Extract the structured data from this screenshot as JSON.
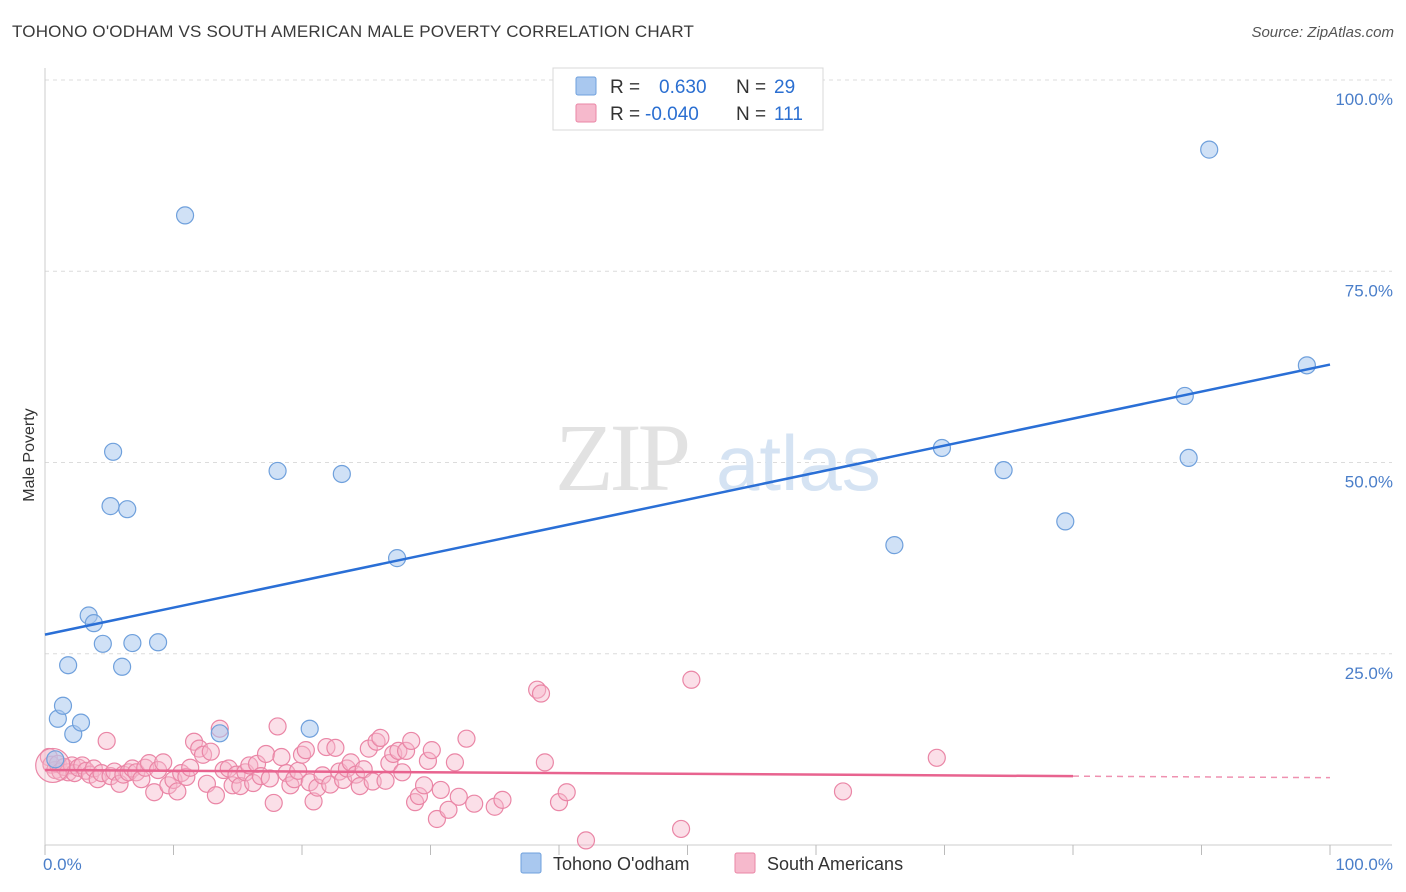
{
  "title": "TOHONO O'ODHAM VS SOUTH AMERICAN MALE POVERTY CORRELATION CHART",
  "source": "Source: ZipAtlas.com",
  "watermark": {
    "zip": "ZIP",
    "atlas": "atlas"
  },
  "colors": {
    "blue_fill": "#a9c8ef",
    "blue_stroke": "#6fa0dc",
    "blue_line": "#2a6fd6",
    "pink_fill": "#f6b9cc",
    "pink_stroke": "#ea86a6",
    "pink_line": "#e8638f",
    "tick_text": "#4a7ec9",
    "grid": "#dcdcdc"
  },
  "legend": {
    "rows": [
      {
        "r_label": "R =",
        "r_value": "0.630",
        "n_label": "N =",
        "n_value": "29"
      },
      {
        "r_label": "R =",
        "r_value": "-0.040",
        "n_label": "N =",
        "n_value": "111"
      }
    ]
  },
  "bottom_legend": [
    "Tohono O'odham",
    "South Americans"
  ],
  "chart_data": {
    "type": "scatter",
    "ylabel": "Male Poverty",
    "xlim": [
      0,
      100
    ],
    "ylim": [
      0,
      100
    ],
    "x_tick_labels": [
      "0.0%",
      "100.0%"
    ],
    "y_tick_labels": [
      "100.0%",
      "75.0%",
      "50.0%",
      "25.0%"
    ],
    "y_ticks": [
      100,
      75,
      50,
      25
    ],
    "grid": "horizontal dashed",
    "legend_placement": "top-center",
    "series": [
      {
        "name": "Tohono O'odham",
        "trend": {
          "x": [
            0,
            100
          ],
          "y": [
            27.5,
            62.8
          ]
        },
        "points": [
          [
            0.8,
            11.2
          ],
          [
            1.0,
            16.5
          ],
          [
            1.4,
            18.2
          ],
          [
            1.8,
            23.5
          ],
          [
            2.2,
            14.5
          ],
          [
            2.8,
            16.0
          ],
          [
            3.4,
            30.0
          ],
          [
            3.8,
            29.0
          ],
          [
            4.5,
            26.3
          ],
          [
            5.1,
            44.3
          ],
          [
            5.3,
            51.4
          ],
          [
            6.0,
            23.3
          ],
          [
            6.4,
            43.9
          ],
          [
            6.8,
            26.4
          ],
          [
            8.8,
            26.5
          ],
          [
            10.9,
            82.3
          ],
          [
            13.6,
            14.6
          ],
          [
            18.1,
            48.9
          ],
          [
            20.6,
            15.2
          ],
          [
            23.1,
            48.5
          ],
          [
            27.4,
            37.5
          ],
          [
            66.1,
            39.2
          ],
          [
            69.8,
            51.9
          ],
          [
            74.6,
            49.0
          ],
          [
            79.4,
            42.3
          ],
          [
            88.7,
            58.7
          ],
          [
            89.0,
            50.6
          ],
          [
            90.6,
            90.9
          ],
          [
            98.2,
            62.7
          ]
        ]
      },
      {
        "name": "South Americans",
        "trend": {
          "x": [
            0,
            80,
            100
          ],
          "y": [
            9.8,
            9.0,
            8.8
          ]
        },
        "points": [
          [
            0.3,
            11.5
          ],
          [
            0.5,
            10.5
          ],
          [
            0.8,
            9.8
          ],
          [
            1.0,
            10.6
          ],
          [
            1.2,
            9.6
          ],
          [
            1.5,
            10.2
          ],
          [
            1.8,
            9.5
          ],
          [
            2.1,
            10.4
          ],
          [
            2.3,
            9.4
          ],
          [
            2.6,
            10.1
          ],
          [
            2.9,
            10.4
          ],
          [
            3.2,
            9.7
          ],
          [
            3.5,
            9.2
          ],
          [
            3.8,
            10.0
          ],
          [
            4.1,
            8.6
          ],
          [
            4.4,
            9.4
          ],
          [
            4.8,
            13.6
          ],
          [
            5.1,
            9.0
          ],
          [
            5.4,
            9.6
          ],
          [
            5.8,
            8.0
          ],
          [
            6.1,
            9.2
          ],
          [
            6.5,
            9.5
          ],
          [
            6.8,
            10.0
          ],
          [
            7.1,
            9.5
          ],
          [
            7.5,
            8.6
          ],
          [
            7.8,
            10.1
          ],
          [
            8.1,
            10.7
          ],
          [
            8.5,
            6.9
          ],
          [
            8.8,
            9.8
          ],
          [
            9.2,
            10.8
          ],
          [
            9.6,
            7.8
          ],
          [
            10.0,
            8.5
          ],
          [
            10.3,
            7.0
          ],
          [
            10.6,
            9.4
          ],
          [
            11.0,
            8.9
          ],
          [
            11.3,
            10.1
          ],
          [
            11.6,
            13.5
          ],
          [
            12.0,
            12.6
          ],
          [
            12.3,
            11.8
          ],
          [
            12.6,
            8.0
          ],
          [
            12.9,
            12.2
          ],
          [
            13.3,
            6.5
          ],
          [
            13.6,
            15.2
          ],
          [
            13.9,
            9.8
          ],
          [
            14.3,
            10.0
          ],
          [
            14.6,
            7.8
          ],
          [
            14.9,
            9.2
          ],
          [
            15.2,
            7.7
          ],
          [
            15.6,
            9.5
          ],
          [
            15.9,
            10.4
          ],
          [
            16.2,
            8.1
          ],
          [
            16.5,
            10.6
          ],
          [
            16.8,
            9.0
          ],
          [
            17.2,
            11.9
          ],
          [
            17.5,
            8.7
          ],
          [
            17.8,
            5.5
          ],
          [
            18.1,
            15.5
          ],
          [
            18.4,
            11.5
          ],
          [
            18.8,
            9.4
          ],
          [
            19.1,
            7.8
          ],
          [
            19.4,
            8.6
          ],
          [
            19.7,
            9.7
          ],
          [
            20.0,
            11.8
          ],
          [
            20.3,
            12.4
          ],
          [
            20.6,
            8.2
          ],
          [
            20.9,
            5.7
          ],
          [
            21.2,
            7.5
          ],
          [
            21.6,
            9.1
          ],
          [
            21.9,
            12.8
          ],
          [
            22.2,
            7.9
          ],
          [
            22.6,
            12.7
          ],
          [
            22.9,
            9.6
          ],
          [
            23.2,
            8.5
          ],
          [
            23.5,
            10.0
          ],
          [
            23.8,
            10.8
          ],
          [
            24.2,
            9.2
          ],
          [
            24.5,
            7.7
          ],
          [
            24.8,
            9.9
          ],
          [
            25.2,
            12.6
          ],
          [
            25.5,
            8.3
          ],
          [
            25.8,
            13.5
          ],
          [
            26.1,
            14.0
          ],
          [
            26.5,
            8.4
          ],
          [
            26.8,
            10.7
          ],
          [
            27.1,
            11.9
          ],
          [
            27.5,
            12.3
          ],
          [
            27.8,
            9.5
          ],
          [
            28.1,
            12.3
          ],
          [
            28.5,
            13.6
          ],
          [
            28.8,
            5.6
          ],
          [
            29.1,
            6.4
          ],
          [
            29.5,
            7.8
          ],
          [
            29.8,
            11.0
          ],
          [
            30.1,
            12.4
          ],
          [
            30.5,
            3.4
          ],
          [
            30.8,
            7.2
          ],
          [
            31.4,
            4.6
          ],
          [
            31.9,
            10.8
          ],
          [
            32.2,
            6.3
          ],
          [
            32.8,
            13.9
          ],
          [
            33.4,
            5.4
          ],
          [
            35.0,
            5.0
          ],
          [
            35.6,
            5.9
          ],
          [
            38.3,
            20.3
          ],
          [
            38.6,
            19.8
          ],
          [
            38.9,
            10.8
          ],
          [
            40.0,
            5.6
          ],
          [
            40.6,
            6.9
          ],
          [
            42.1,
            0.6
          ],
          [
            49.5,
            2.1
          ],
          [
            50.3,
            21.6
          ],
          [
            62.1,
            7.0
          ],
          [
            69.4,
            11.4
          ]
        ]
      }
    ]
  }
}
